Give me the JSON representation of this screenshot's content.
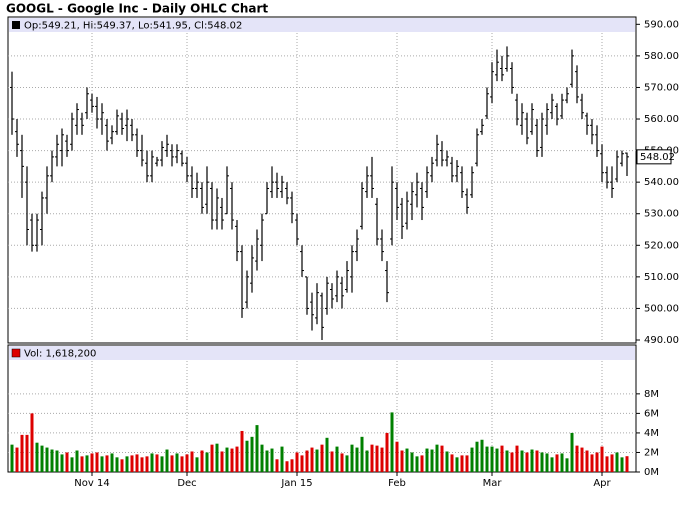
{
  "chart_data": [
    {
      "type": "ohlc",
      "title": "GOOGL - Google Inc - Daily OHLC Chart",
      "legend_text": "Op:549.21, Hi:549.37, Lo:541.95, Cl:548.02",
      "color": "#000000",
      "last_label": "548.02",
      "ylim": [
        490,
        592
      ],
      "yticks": [
        {
          "value": 490,
          "label": "490.00"
        },
        {
          "value": 500,
          "label": "500.00"
        },
        {
          "value": 510,
          "label": "510.00"
        },
        {
          "value": 520,
          "label": "520.00"
        },
        {
          "value": 530,
          "label": "530.00"
        },
        {
          "value": 540,
          "label": "540.00"
        },
        {
          "value": 550,
          "label": "550.00"
        },
        {
          "value": 560,
          "label": "560.00"
        },
        {
          "value": 570,
          "label": "570.00"
        },
        {
          "value": 580,
          "label": "580.00"
        },
        {
          "value": 590,
          "label": "590.00"
        }
      ],
      "grid": true,
      "open": [
        570,
        556,
        550,
        540,
        528,
        520,
        525,
        535,
        542,
        548,
        550,
        553,
        552,
        558,
        560,
        562,
        566,
        564,
        560,
        558,
        554,
        556,
        560,
        558,
        558,
        555,
        550,
        546,
        542,
        546,
        547,
        550,
        550,
        548,
        549,
        546,
        542,
        538,
        538,
        533,
        538,
        528,
        532,
        530,
        538,
        526,
        518,
        502,
        508,
        515,
        520,
        530,
        537,
        540,
        537,
        538,
        535,
        528,
        518,
        510,
        502,
        497,
        504,
        500,
        506,
        504,
        508,
        506,
        510,
        518,
        526,
        537,
        542,
        533,
        522,
        512,
        522,
        538,
        533,
        527,
        533,
        536,
        538,
        537,
        542,
        547,
        550,
        547,
        546,
        542,
        543,
        536,
        536,
        546,
        556,
        561,
        567,
        574,
        576,
        576,
        576,
        566,
        558,
        560,
        556,
        558,
        551,
        558,
        562,
        564,
        561,
        566,
        571,
        575,
        566,
        561,
        558,
        555,
        549,
        543,
        540,
        541,
        546,
        549.21
      ],
      "high": [
        575,
        560,
        555,
        545,
        530,
        530,
        537,
        545,
        550,
        555,
        557,
        555,
        562,
        565,
        562,
        570,
        568,
        567,
        565,
        560,
        558,
        563,
        562,
        563,
        560,
        557,
        555,
        550,
        550,
        548,
        553,
        555,
        552,
        552,
        550,
        548,
        545,
        543,
        540,
        545,
        540,
        538,
        535,
        545,
        540,
        528,
        520,
        512,
        520,
        525,
        530,
        540,
        545,
        543,
        542,
        540,
        537,
        530,
        520,
        510,
        505,
        508,
        505,
        510,
        508,
        512,
        510,
        515,
        520,
        525,
        540,
        545,
        548,
        535,
        525,
        515,
        545,
        540,
        535,
        537,
        540,
        543,
        540,
        545,
        548,
        555,
        553,
        550,
        548,
        547,
        545,
        538,
        545,
        557,
        560,
        570,
        578,
        582,
        580,
        583,
        578,
        568,
        565,
        562,
        565,
        560,
        562,
        565,
        568,
        565,
        568,
        570,
        582,
        577,
        568,
        562,
        560,
        558,
        552,
        545,
        545,
        550,
        550,
        549.37
      ],
      "low": [
        555,
        548,
        535,
        520,
        518,
        518,
        520,
        530,
        540,
        545,
        545,
        548,
        550,
        555,
        555,
        560,
        562,
        557,
        555,
        550,
        552,
        555,
        555,
        553,
        553,
        548,
        545,
        540,
        540,
        545,
        545,
        548,
        545,
        546,
        545,
        540,
        535,
        535,
        530,
        530,
        525,
        525,
        525,
        530,
        525,
        515,
        497,
        500,
        505,
        512,
        515,
        530,
        535,
        535,
        535,
        533,
        527,
        520,
        510,
        498,
        493,
        495,
        490,
        498,
        500,
        502,
        500,
        505,
        505,
        515,
        525,
        535,
        535,
        520,
        515,
        502,
        520,
        528,
        522,
        525,
        528,
        532,
        528,
        535,
        540,
        545,
        545,
        545,
        540,
        540,
        535,
        530,
        535,
        545,
        555,
        560,
        565,
        572,
        572,
        575,
        568,
        558,
        555,
        552,
        555,
        548,
        548,
        555,
        560,
        558,
        560,
        565,
        570,
        565,
        560,
        555,
        552,
        548,
        540,
        538,
        535,
        540,
        545,
        541.95
      ],
      "close": [
        560,
        552,
        545,
        525,
        520,
        528,
        535,
        542,
        548,
        552,
        555,
        550,
        560,
        563,
        558,
        568,
        564,
        560,
        562,
        553,
        556,
        561,
        557,
        560,
        555,
        550,
        547,
        542,
        548,
        547,
        551,
        552,
        548,
        550,
        546,
        542,
        538,
        540,
        532,
        540,
        528,
        535,
        528,
        542,
        528,
        518,
        500,
        510,
        516,
        522,
        528,
        538,
        540,
        538,
        540,
        535,
        530,
        522,
        512,
        500,
        498,
        505,
        494,
        508,
        503,
        510,
        504,
        512,
        518,
        522,
        538,
        542,
        538,
        522,
        518,
        505,
        540,
        532,
        526,
        534,
        537,
        540,
        532,
        543,
        546,
        552,
        547,
        548,
        542,
        545,
        537,
        532,
        543,
        555,
        558,
        568,
        575,
        578,
        574,
        580,
        570,
        560,
        562,
        554,
        563,
        550,
        560,
        563,
        566,
        560,
        566,
        568,
        580,
        567,
        562,
        558,
        555,
        550,
        543,
        540,
        538,
        548,
        549,
        548.02
      ]
    },
    {
      "type": "bar",
      "legend_text": "Vol: 1,618,200",
      "up_color": "#008000",
      "down_color": "#dd0000",
      "ylim": [
        0,
        13000000
      ],
      "yticks": [
        {
          "value": 0,
          "label": "0M"
        },
        {
          "value": 2000000,
          "label": "2M"
        },
        {
          "value": 4000000,
          "label": "4M"
        },
        {
          "value": 6000000,
          "label": "6M"
        },
        {
          "value": 8000000,
          "label": "8M"
        }
      ],
      "grid": true,
      "categories": [
        null,
        null,
        null,
        null,
        null,
        null,
        null,
        null,
        null,
        null,
        null,
        null,
        null,
        null,
        null,
        null,
        "Nov 14",
        null,
        null,
        null,
        null,
        null,
        null,
        null,
        null,
        null,
        null,
        null,
        null,
        null,
        null,
        null,
        null,
        null,
        null,
        "Dec",
        null,
        null,
        null,
        null,
        null,
        null,
        null,
        null,
        null,
        null,
        null,
        null,
        null,
        null,
        null,
        null,
        null,
        null,
        null,
        null,
        null,
        "Jan 15",
        null,
        null,
        null,
        null,
        null,
        null,
        null,
        null,
        null,
        null,
        null,
        null,
        null,
        null,
        null,
        null,
        null,
        null,
        null,
        "Feb",
        null,
        null,
        null,
        null,
        null,
        null,
        null,
        null,
        null,
        null,
        null,
        null,
        null,
        null,
        null,
        null,
        null,
        null,
        "Mar",
        null,
        null,
        null,
        null,
        null,
        null,
        null,
        null,
        null,
        null,
        null,
        null,
        null,
        null,
        null,
        null,
        null,
        null,
        null,
        null,
        null,
        "Apr",
        null,
        null,
        null,
        null,
        null
      ],
      "values": [
        2800000,
        2500000,
        3800000,
        3800000,
        6000000,
        3000000,
        2700000,
        2500000,
        2300000,
        2200000,
        1800000,
        2000000,
        1500000,
        2200000,
        1600000,
        1700000,
        1900000,
        2000000,
        1600000,
        1700000,
        1900000,
        1500000,
        1300000,
        1600000,
        1700000,
        1800000,
        1500000,
        1600000,
        1900000,
        1800000,
        1600000,
        2300000,
        1700000,
        1900000,
        1600000,
        1800000,
        2100000,
        1500000,
        2200000,
        2000000,
        2800000,
        2900000,
        2100000,
        2500000,
        2400000,
        2600000,
        4200000,
        3200000,
        3600000,
        4800000,
        2800000,
        2200000,
        2400000,
        1300000,
        2600000,
        1100000,
        1300000,
        2000000,
        1700000,
        2200000,
        2500000,
        2300000,
        2800000,
        3500000,
        2100000,
        2600000,
        1900000,
        1700000,
        2800000,
        2500000,
        3600000,
        2200000,
        2800000,
        2700000,
        2500000,
        4000000,
        6100000,
        3100000,
        2200000,
        2400000,
        2000000,
        1600000,
        1700000,
        2400000,
        2300000,
        2800000,
        2700000,
        2100000,
        1800000,
        1500000,
        1700000,
        1700000,
        2500000,
        3100000,
        3300000,
        2600000,
        2600000,
        2400000,
        2700000,
        2200000,
        2000000,
        2700000,
        2200000,
        2000000,
        2300000,
        2200000,
        2000000,
        1900000,
        1500000,
        1800000,
        1900000,
        1400000,
        4000000,
        2700000,
        2500000,
        2200000,
        1800000,
        2000000,
        2600000,
        1600000,
        1800000,
        2000000,
        1500000,
        1618200
      ]
    }
  ]
}
